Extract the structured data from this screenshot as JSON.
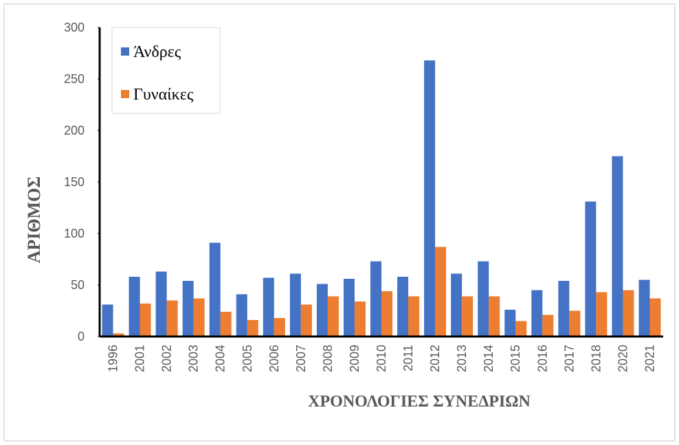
{
  "chart_data": {
    "type": "bar",
    "categories": [
      "1996",
      "2001",
      "2002",
      "2003",
      "2004",
      "2005",
      "2006",
      "2007",
      "2008",
      "2009",
      "2010",
      "2011",
      "2012",
      "2013",
      "2014",
      "2015",
      "2016",
      "2017",
      "2018",
      "2020",
      "2021"
    ],
    "series": [
      {
        "name": "Άνδρες",
        "color": "#4472c4",
        "values": [
          31,
          58,
          63,
          54,
          91,
          41,
          57,
          61,
          51,
          56,
          73,
          58,
          268,
          61,
          73,
          26,
          45,
          54,
          131,
          175,
          55
        ]
      },
      {
        "name": "Γυναίκες",
        "color": "#ed7d31",
        "values": [
          3,
          32,
          35,
          37,
          24,
          16,
          18,
          31,
          39,
          34,
          44,
          39,
          87,
          39,
          39,
          15,
          21,
          25,
          43,
          45,
          37
        ]
      }
    ],
    "x_label": "ΧΡΟΝΟΛΟΓΙΕΣ ΣΥΝΕΔΡΙΩΝ",
    "y_label": "ΑΡΙΘΜΟΣ",
    "ylim": [
      0,
      300
    ],
    "yticks": [
      0,
      50,
      100,
      150,
      200,
      250,
      300
    ],
    "legend": "upper left"
  }
}
